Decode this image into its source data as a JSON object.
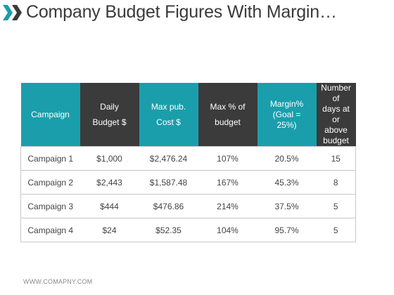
{
  "header": {
    "title": "Company Budget Figures With Margin…",
    "chevron_colors": [
      "#1a9eac",
      "#3b3b3b"
    ]
  },
  "table": {
    "columns": [
      {
        "label": "Campaign",
        "fill": "#1a9eac"
      },
      {
        "label": "Daily\nBudget $",
        "fill": "#3b3b3b"
      },
      {
        "label": "Max pub.\nCost $",
        "fill": "#1a9eac"
      },
      {
        "label": "Max % of\nbudget",
        "fill": "#3b3b3b"
      },
      {
        "label": "Margin%\n(Goal =\n25%)",
        "fill": "#1a9eac"
      },
      {
        "label": "Number of\ndays at or\nabove\nbudget",
        "fill": "#3b3b3b"
      }
    ],
    "rows": [
      [
        "Campaign 1",
        "$1,000",
        "$2,476.24",
        "107%",
        "20.5%",
        "15"
      ],
      [
        "Campaign 2",
        "$2,443",
        "$1,587.48",
        "167%",
        "45.3%",
        "8"
      ],
      [
        "Campaign 3",
        "$444",
        "$476.86",
        "214%",
        "37.5%",
        "5"
      ],
      [
        "Campaign 4",
        "$24",
        "$52.35",
        "104%",
        "95.7%",
        "5"
      ]
    ]
  },
  "footer": {
    "url": "WWW.COMAPNY.COM"
  }
}
